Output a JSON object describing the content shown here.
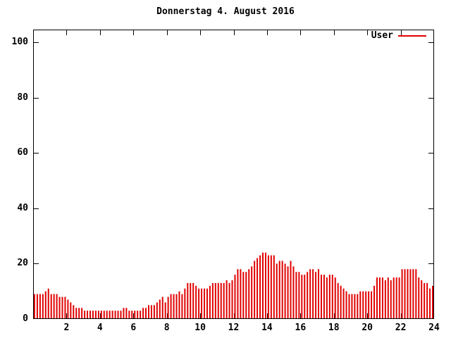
{
  "title": "Donnerstag 4. August 2016",
  "legend": {
    "label": "User",
    "color": "#e00000"
  },
  "chart_data": {
    "type": "bar",
    "title": "Donnerstag 4. August 2016",
    "xlabel": "",
    "ylabel": "",
    "xlim": [
      0,
      24
    ],
    "ylim": [
      0,
      105
    ],
    "x_ticks": [
      2,
      4,
      6,
      8,
      10,
      12,
      14,
      16,
      18,
      20,
      22,
      24
    ],
    "y_ticks": [
      0,
      20,
      40,
      60,
      80,
      100
    ],
    "grid": false,
    "legend_position": "top-right",
    "bar_style": "impulses",
    "sample_interval_minutes": 10,
    "series": [
      {
        "name": "User",
        "color": "#e00000",
        "values": [
          9,
          9,
          9,
          9,
          10,
          11,
          9,
          9,
          9,
          8,
          8,
          8,
          7,
          6,
          5,
          4,
          4,
          4,
          3,
          3,
          3,
          3,
          3,
          3,
          3,
          3,
          3,
          3,
          3,
          3,
          3,
          3,
          4,
          4,
          3,
          3,
          3,
          3,
          3,
          4,
          4,
          5,
          5,
          5,
          6,
          7,
          8,
          6,
          8,
          9,
          9,
          9,
          10,
          9,
          11,
          13,
          13,
          13,
          12,
          11,
          11,
          11,
          11,
          12,
          13,
          13,
          13,
          13,
          13,
          14,
          13,
          14,
          16,
          18,
          18,
          17,
          17,
          18,
          19,
          21,
          22,
          23,
          24,
          24,
          23,
          23,
          23,
          20,
          21,
          21,
          20,
          19,
          21,
          19,
          17,
          17,
          16,
          16,
          17,
          18,
          18,
          17,
          18,
          16,
          16,
          15,
          16,
          16,
          15,
          13,
          12,
          11,
          10,
          9,
          9,
          9,
          9,
          10,
          10,
          10,
          10,
          10,
          12,
          15,
          15,
          15,
          14,
          15,
          14,
          15,
          15,
          15,
          18,
          18,
          18,
          18,
          18,
          18,
          15,
          14,
          13,
          13,
          11,
          12
        ]
      }
    ]
  }
}
